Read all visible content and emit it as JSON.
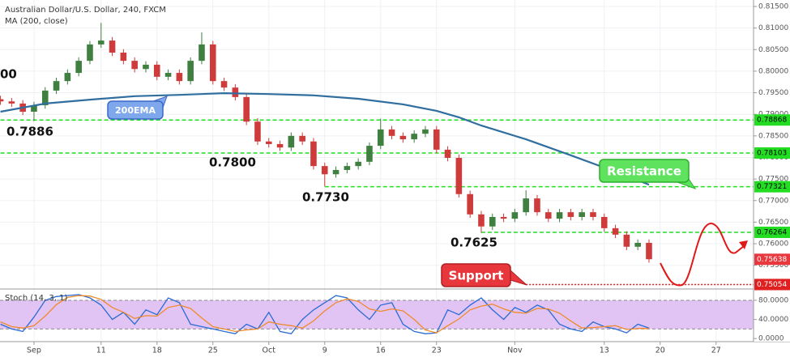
{
  "chart_data": {
    "type": "candlestick",
    "title": "Australian Dollar/U.S. Dollar, 240, FXCM",
    "x": [
      -3,
      -2,
      -1,
      0,
      1,
      2,
      3,
      4,
      5,
      6,
      7,
      8,
      9,
      10,
      11,
      12,
      13,
      14,
      15,
      16,
      17,
      18,
      19,
      20,
      21,
      22,
      23,
      24,
      25,
      26,
      27,
      28,
      29,
      30,
      31,
      32,
      33,
      34,
      35,
      36,
      37,
      38,
      39,
      40,
      41,
      42,
      43,
      44,
      45,
      46,
      47,
      48,
      49,
      50,
      51,
      52,
      53,
      54,
      55
    ],
    "open": [
      0.7935,
      0.793,
      0.7925,
      0.7906,
      0.7921,
      0.7955,
      0.7977,
      0.7996,
      0.8024,
      0.8062,
      0.8071,
      0.8043,
      0.8024,
      0.8005,
      0.8015,
      0.7987,
      0.7996,
      0.7977,
      0.8024,
      0.8062,
      0.7977,
      0.7962,
      0.794,
      0.7883,
      0.7837,
      0.7831,
      0.7823,
      0.785,
      0.7837,
      0.778,
      0.7761,
      0.7771,
      0.778,
      0.779,
      0.7827,
      0.7865,
      0.785,
      0.7842,
      0.7855,
      0.7865,
      0.7818,
      0.7799,
      0.7715,
      0.7668,
      0.764,
      0.7662,
      0.7658,
      0.7673,
      0.7705,
      0.7673,
      0.7658,
      0.7673,
      0.7662,
      0.7673,
      0.7662,
      0.7636,
      0.7621,
      0.7593,
      0.7602
    ],
    "high": [
      0.7943,
      0.7938,
      0.7933,
      0.7929,
      0.7963,
      0.7985,
      0.8004,
      0.8032,
      0.807,
      0.8112,
      0.8079,
      0.8051,
      0.8032,
      0.8023,
      0.8023,
      0.8004,
      0.8004,
      0.8032,
      0.809,
      0.807,
      0.7985,
      0.797,
      0.7948,
      0.7891,
      0.7845,
      0.7839,
      0.7858,
      0.7858,
      0.7845,
      0.7788,
      0.7779,
      0.7788,
      0.7798,
      0.7835,
      0.789,
      0.7873,
      0.7858,
      0.7863,
      0.7873,
      0.7873,
      0.7826,
      0.7807,
      0.7723,
      0.7676,
      0.767,
      0.767,
      0.7681,
      0.7724,
      0.7713,
      0.7681,
      0.7681,
      0.7681,
      0.7681,
      0.7681,
      0.767,
      0.7644,
      0.7629,
      0.761,
      0.761
    ],
    "low": [
      0.7922,
      0.7917,
      0.7898,
      0.7884,
      0.7913,
      0.7947,
      0.7969,
      0.7988,
      0.8016,
      0.8054,
      0.8035,
      0.8016,
      0.7997,
      0.7997,
      0.7979,
      0.7979,
      0.7969,
      0.7969,
      0.8016,
      0.7969,
      0.7954,
      0.7932,
      0.7875,
      0.7829,
      0.7823,
      0.7815,
      0.7815,
      0.7829,
      0.7772,
      0.7733,
      0.7753,
      0.7763,
      0.7772,
      0.7782,
      0.7819,
      0.7842,
      0.7834,
      0.7834,
      0.7847,
      0.781,
      0.7791,
      0.7707,
      0.766,
      0.7625,
      0.7632,
      0.765,
      0.765,
      0.7665,
      0.7665,
      0.765,
      0.765,
      0.7654,
      0.7654,
      0.7654,
      0.7628,
      0.7613,
      0.7585,
      0.7585,
      0.7556
    ],
    "close": [
      0.793,
      0.7925,
      0.7906,
      0.7921,
      0.7955,
      0.7977,
      0.7996,
      0.8024,
      0.8062,
      0.8071,
      0.8043,
      0.8024,
      0.8005,
      0.8015,
      0.7987,
      0.7996,
      0.7977,
      0.8024,
      0.8062,
      0.7977,
      0.7962,
      0.794,
      0.7883,
      0.7837,
      0.7831,
      0.7823,
      0.785,
      0.7837,
      0.778,
      0.7761,
      0.7771,
      0.778,
      0.779,
      0.7827,
      0.7865,
      0.785,
      0.7842,
      0.7855,
      0.7865,
      0.7818,
      0.7799,
      0.7715,
      0.7668,
      0.764,
      0.7662,
      0.7658,
      0.7673,
      0.7705,
      0.7673,
      0.7658,
      0.7673,
      0.7662,
      0.7673,
      0.7662,
      0.7636,
      0.7621,
      0.7593,
      0.7602,
      0.7564
    ],
    "up_color": "#3f7f3f",
    "down_color": "#cf3b3b",
    "ylim": [
      0.7495,
      0.8165
    ],
    "yticks": [
      {
        "value": 0.815,
        "label": "0.81500"
      },
      {
        "value": 0.81,
        "label": "0.81000"
      },
      {
        "value": 0.805,
        "label": "0.80500"
      },
      {
        "value": 0.8,
        "label": "0.80000"
      },
      {
        "value": 0.795,
        "label": "0.79500"
      },
      {
        "value": 0.79,
        "label": "0.79000"
      },
      {
        "value": 0.785,
        "label": "0.78500"
      },
      {
        "value": 0.78,
        "label": "0.78000"
      },
      {
        "value": 0.775,
        "label": "0.77500"
      },
      {
        "value": 0.77,
        "label": "0.77000"
      },
      {
        "value": 0.765,
        "label": "0.76500"
      },
      {
        "value": 0.76,
        "label": "0.76000"
      },
      {
        "value": 0.755,
        "label": "0.75500"
      }
    ],
    "xlim": [
      -3.04,
      64.35
    ],
    "xticks": [
      {
        "value": 0,
        "label": "Sep"
      },
      {
        "value": 6,
        "label": "11"
      },
      {
        "value": 11,
        "label": "18"
      },
      {
        "value": 16,
        "label": "25"
      },
      {
        "value": 21,
        "label": "Oct"
      },
      {
        "value": 26,
        "label": "9"
      },
      {
        "value": 31,
        "label": "16"
      },
      {
        "value": 36,
        "label": "23"
      },
      {
        "value": 43,
        "label": "Nov"
      },
      {
        "value": 51,
        "label": "13"
      },
      {
        "value": 56,
        "label": "20"
      },
      {
        "value": 61,
        "label": "27"
      }
    ],
    "grid": true,
    "ma": {
      "name": "MA (200, close)",
      "color": "#2f6e9e",
      "x": [
        -3,
        1,
        5,
        9,
        13,
        17,
        21,
        25,
        29,
        33,
        36,
        38,
        40,
        44,
        48,
        52,
        55
      ],
      "values": [
        0.7906,
        0.7925,
        0.7934,
        0.7942,
        0.7945,
        0.7949,
        0.7947,
        0.7944,
        0.7936,
        0.7923,
        0.7908,
        0.7893,
        0.7874,
        0.7842,
        0.7805,
        0.7767,
        0.7737
      ]
    },
    "levels": [
      {
        "value": 0.78868,
        "label": "0.78868",
        "from": -3,
        "color": "#22dd22",
        "dash": "dashed"
      },
      {
        "value": 0.78103,
        "label": "0.78103",
        "from": -3,
        "color": "#22dd22",
        "dash": "dashed"
      },
      {
        "value": 0.77321,
        "label": "0.77321",
        "from": 26,
        "color": "#22dd22",
        "dash": "dashed"
      },
      {
        "value": 0.76264,
        "label": "0.76264",
        "from": 40,
        "color": "#22dd22",
        "dash": "dashed"
      },
      {
        "value": 0.75054,
        "label": "0.75054",
        "from": 44,
        "color": "#e02020",
        "dash": "dotted"
      }
    ],
    "last_price": {
      "value": 0.75638,
      "label": "0.75638",
      "color": "#e8383d"
    },
    "annotations": [
      "00",
      "0.7886",
      "0.7800",
      "0.7730",
      "0.7625"
    ],
    "callouts": [
      "200EMA",
      "Resistance",
      "Support"
    ],
    "stoch": {
      "name": "Stoch (14, 3, 1)",
      "k_color": "#2a6cd4",
      "d_color": "#ef8a2c",
      "k": [
        30,
        20,
        15,
        45,
        80,
        88,
        90,
        92,
        85,
        70,
        40,
        55,
        30,
        60,
        50,
        85,
        75,
        30,
        25,
        20,
        15,
        10,
        30,
        20,
        55,
        15,
        10,
        40,
        60,
        75,
        90,
        85,
        60,
        40,
        70,
        75,
        30,
        15,
        10,
        12,
        60,
        50,
        70,
        85,
        60,
        40,
        65,
        55,
        70,
        60,
        30,
        20,
        15,
        35,
        25,
        20,
        12,
        30,
        22
      ],
      "d": [
        35,
        25,
        22,
        27,
        47,
        71,
        86,
        90,
        89,
        82,
        65,
        55,
        42,
        48,
        47,
        65,
        70,
        63,
        43,
        25,
        20,
        15,
        18,
        20,
        35,
        30,
        27,
        22,
        37,
        58,
        75,
        83,
        78,
        62,
        57,
        62,
        58,
        40,
        18,
        12,
        27,
        41,
        60,
        68,
        72,
        62,
        55,
        53,
        63,
        62,
        53,
        37,
        22,
        23,
        25,
        27,
        19,
        21,
        21
      ],
      "ylim": [
        -3,
        102
      ],
      "yticks": [
        {
          "value": 80,
          "label": "80.0000"
        },
        {
          "value": 40,
          "label": "40.0000"
        },
        {
          "value": 0,
          "label": "0.0000"
        }
      ],
      "bands": [
        20,
        80
      ]
    }
  }
}
